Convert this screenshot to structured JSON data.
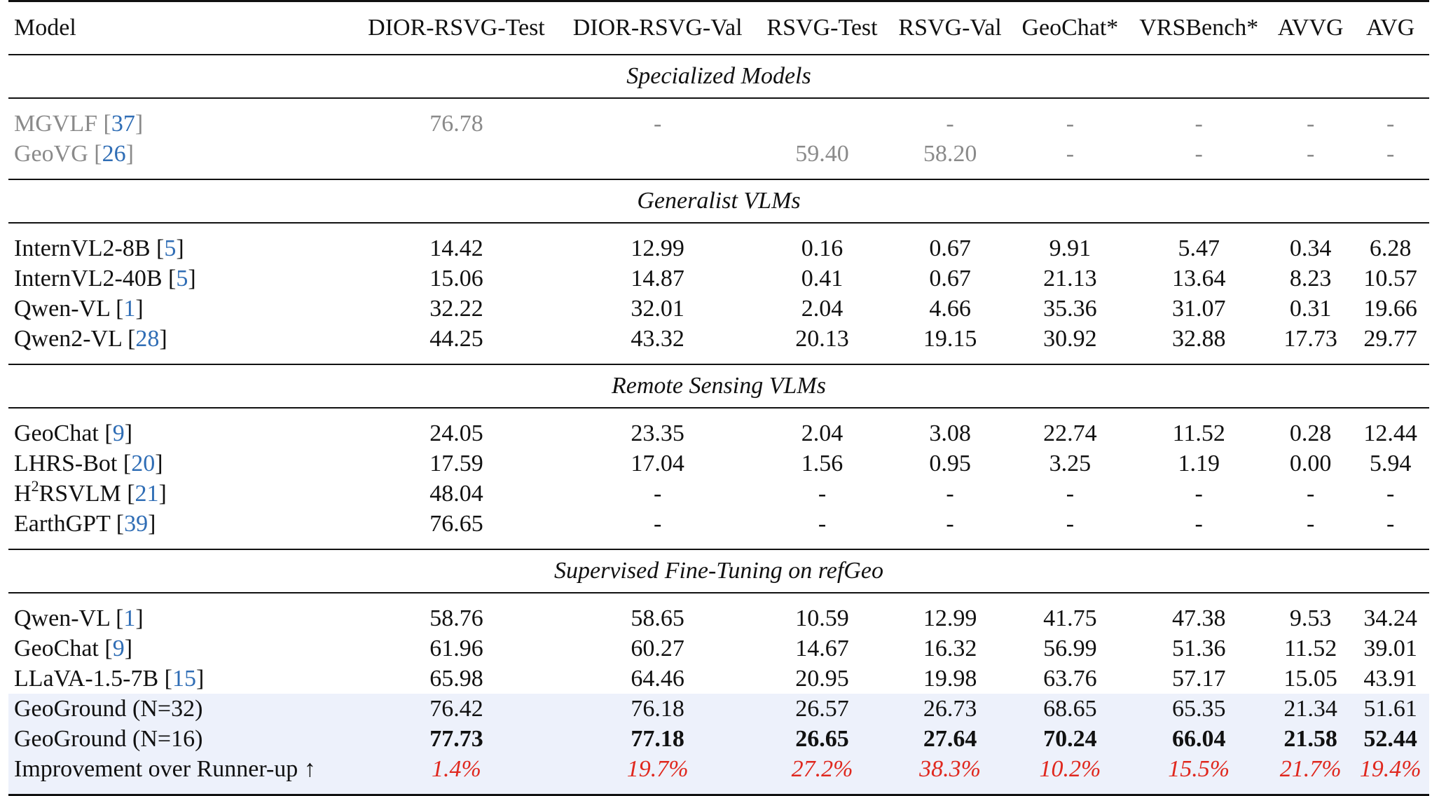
{
  "columns": [
    "Model",
    "DIOR-RSVG-Test",
    "DIOR-RSVG-Val",
    "RSVG-Test",
    "RSVG-Val",
    "GeoChat*",
    "VRSBench*",
    "AVVG",
    "AVG"
  ],
  "sections": [
    {
      "title": "Specialized Models",
      "rows": [
        {
          "model": "MGVLF [",
          "ref": "37",
          "close": "]",
          "values": [
            "76.78",
            "-",
            "",
            "-",
            "-",
            "-",
            "-",
            "-"
          ]
        },
        {
          "model": "GeoVG [",
          "ref": "26",
          "close": "]",
          "values": [
            "",
            "",
            "59.40",
            "58.20",
            "-",
            "-",
            "-",
            "-"
          ]
        }
      ]
    },
    {
      "title": "Generalist VLMs",
      "rows": [
        {
          "model": "InternVL2-8B [",
          "ref": "5",
          "close": "]",
          "values": [
            "14.42",
            "12.99",
            "0.16",
            "0.67",
            "9.91",
            "5.47",
            "0.34",
            "6.28"
          ]
        },
        {
          "model": "InternVL2-40B [",
          "ref": "5",
          "close": "]",
          "values": [
            "15.06",
            "14.87",
            "0.41",
            "0.67",
            "21.13",
            "13.64",
            "8.23",
            "10.57"
          ]
        },
        {
          "model": "Qwen-VL [",
          "ref": "1",
          "close": "]",
          "values": [
            "32.22",
            "32.01",
            "2.04",
            "4.66",
            "35.36",
            "31.07",
            "0.31",
            "19.66"
          ]
        },
        {
          "model": "Qwen2-VL [",
          "ref": "28",
          "close": "]",
          "values": [
            "44.25",
            "43.32",
            "20.13",
            "19.15",
            "30.92",
            "32.88",
            "17.73",
            "29.77"
          ]
        }
      ]
    },
    {
      "title": "Remote Sensing VLMs",
      "rows": [
        {
          "model": "GeoChat [",
          "ref": "9",
          "close": "]",
          "values": [
            "24.05",
            "23.35",
            "2.04",
            "3.08",
            "22.74",
            "11.52",
            "0.28",
            "12.44"
          ]
        },
        {
          "model": "LHRS-Bot [",
          "ref": "20",
          "close": "]",
          "values": [
            "17.59",
            "17.04",
            "1.56",
            "0.95",
            "3.25",
            "1.19",
            "0.00",
            "5.94"
          ]
        },
        {
          "model_pre": "H",
          "model_sup": "2",
          "model": "RSVLM [",
          "ref": "21",
          "close": "]",
          "values": [
            "48.04",
            "-",
            "-",
            "-",
            "-",
            "-",
            "-",
            "-"
          ]
        },
        {
          "model": "EarthGPT [",
          "ref": "39",
          "close": "]",
          "values": [
            "76.65",
            "-",
            "-",
            "-",
            "-",
            "-",
            "-",
            "-"
          ]
        }
      ]
    },
    {
      "title": "Supervised Fine-Tuning on refGeo",
      "rows": [
        {
          "model": "Qwen-VL [",
          "ref": "1",
          "close": "]",
          "values": [
            "58.76",
            "58.65",
            "10.59",
            "12.99",
            "41.75",
            "47.38",
            "9.53",
            "34.24"
          ]
        },
        {
          "model": "GeoChat [",
          "ref": "9",
          "close": "]",
          "values": [
            "61.96",
            "60.27",
            "14.67",
            "16.32",
            "56.99",
            "51.36",
            "11.52",
            "39.01"
          ]
        },
        {
          "model": "LLaVA-1.5-7B [",
          "ref": "15",
          "close": "]",
          "values": [
            "65.98",
            "64.46",
            "20.95",
            "19.98",
            "63.76",
            "57.17",
            "15.05",
            "43.91"
          ]
        },
        {
          "model": "GeoGround (N=32)",
          "values": [
            "76.42",
            "76.18",
            "26.57",
            "26.73",
            "68.65",
            "65.35",
            "21.34",
            "51.61"
          ]
        },
        {
          "model": "GeoGround (N=16)",
          "values": [
            "77.73",
            "77.18",
            "26.65",
            "27.64",
            "70.24",
            "66.04",
            "21.58",
            "52.44"
          ]
        },
        {
          "model": "Improvement over Runner-up ↑",
          "values": [
            "1.4%",
            "19.7%",
            "27.2%",
            "38.3%",
            "10.2%",
            "15.5%",
            "21.7%",
            "19.4%"
          ]
        }
      ]
    }
  ],
  "colors": {
    "ref_link": "#2f6db5",
    "improvement": "#e0281e",
    "greyed_row": "#8a8a8a",
    "highlight_row": "#edf1fb"
  }
}
